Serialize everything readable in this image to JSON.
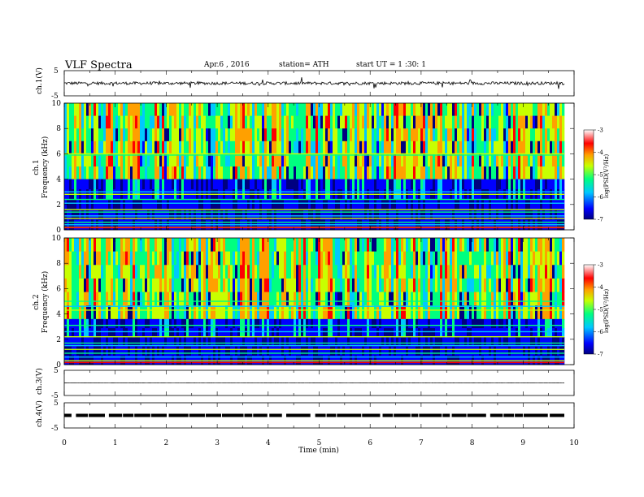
{
  "header": {
    "title": "VLF  Spectra",
    "date": "Apr.6  , 2016",
    "station": "station= ATH",
    "start": "start  UT  =   1  :30: 1"
  },
  "chart_data": [
    {
      "type": "line",
      "name": "ch1-waveform",
      "ylabel": "ch.1(V)",
      "ylim": [
        -5,
        5
      ],
      "yticks": [
        "5",
        "-5"
      ],
      "xlim": [
        0,
        10
      ],
      "baseline": 0,
      "amplitude": 1.2,
      "color": "#000000"
    },
    {
      "type": "heatmap",
      "name": "ch1-spectrogram",
      "ylabel": "ch.1\nFrequency  (kHz)",
      "ylabel_line1": "ch.1",
      "ylabel_line2": "Frequency  (kHz)",
      "ylim": [
        0,
        10
      ],
      "yticks": [
        "0",
        "2",
        "4",
        "6",
        "8",
        "10"
      ],
      "xlim": [
        0,
        9.8
      ],
      "colorbar": {
        "label": "log(PSD(V²/Hz)",
        "ticks": [
          "-3",
          "-4",
          "-5",
          "-6",
          "-7"
        ],
        "range": [
          -7,
          -3
        ]
      },
      "bands_khz": [
        0.2,
        0.4,
        0.6,
        0.9,
        1.1,
        1.4,
        1.6,
        2.1,
        2.4,
        2.8,
        3.0,
        5.9,
        6.0
      ],
      "noise_floor_khz": 4.0
    },
    {
      "type": "heatmap",
      "name": "ch2-spectrogram",
      "ylabel_line1": "ch.2",
      "ylabel_line2": "Frequency  (kHz)",
      "ylim": [
        0,
        10
      ],
      "yticks": [
        "0",
        "2",
        "4",
        "6",
        "8",
        "10"
      ],
      "xlim": [
        0,
        9.8
      ],
      "colorbar": {
        "label": "log(PSD(V²/Hz)",
        "ticks": [
          "-3",
          "-4",
          "-5",
          "-6",
          "-7"
        ],
        "range": [
          -7,
          -3
        ]
      },
      "bands_khz": [
        0.3,
        0.6,
        0.9,
        1.2,
        1.5,
        1.7,
        2.2,
        2.6,
        3.1,
        4.3,
        4.6,
        5.0
      ],
      "noise_floor_khz": 3.6
    },
    {
      "type": "line",
      "name": "ch3-waveform",
      "ylabel": "ch.3(V)",
      "ylim": [
        -5,
        5
      ],
      "yticks": [
        "5",
        "-5"
      ],
      "xlim": [
        0,
        10
      ],
      "baseline": 0,
      "amplitude": 0.1,
      "color": "#000000"
    },
    {
      "type": "line",
      "name": "ch4-waveform",
      "ylabel": "ch.4(V)",
      "ylim": [
        -5,
        5
      ],
      "yticks": [
        "5",
        "-5"
      ],
      "xlim": [
        0,
        10
      ],
      "baseline": 0,
      "amplitude": 0.5,
      "color": "#000000"
    }
  ],
  "xaxis": {
    "label": "Time  (min)",
    "ticks": [
      "0",
      "1",
      "2",
      "3",
      "4",
      "5",
      "6",
      "7",
      "8",
      "9",
      "10"
    ],
    "range": [
      0,
      10
    ]
  },
  "colormap": [
    "#000080",
    "#0000ff",
    "#00c8ff",
    "#00ff80",
    "#c8ff00",
    "#ffa000",
    "#ff0000",
    "#ffffff"
  ]
}
